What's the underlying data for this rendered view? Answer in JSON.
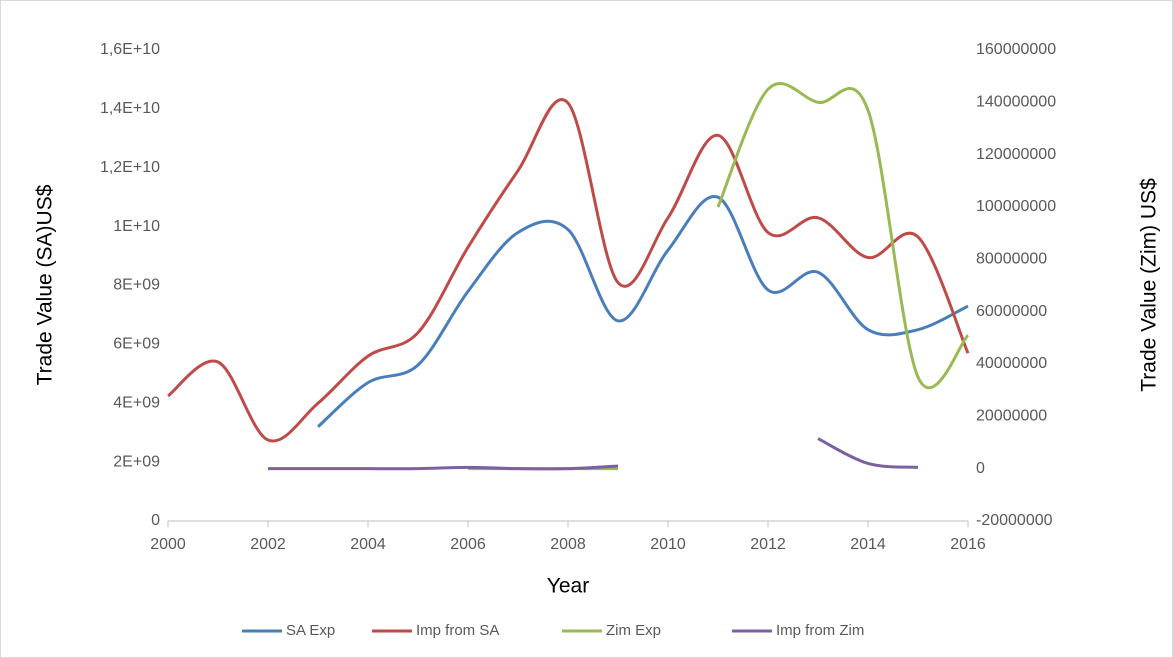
{
  "chart_data": {
    "type": "line",
    "x_label": "Year",
    "y_label": "Trade Value  (SA)US$",
    "y2_label": "Trade Value (Zim) US$",
    "x": [
      2000,
      2001,
      2002,
      2003,
      2004,
      2005,
      2006,
      2007,
      2008,
      2009,
      2010,
      2011,
      2012,
      2013,
      2014,
      2015,
      2016
    ],
    "xlim": [
      2000,
      2016
    ],
    "xticks": [
      2000,
      2002,
      2004,
      2006,
      2008,
      2010,
      2012,
      2014,
      2016
    ],
    "ylim": [
      0,
      16000000000
    ],
    "yticks": [
      0,
      {
        "value": 2000000000,
        "label": "2E+09"
      },
      {
        "value": 4000000000,
        "label": "4E+09"
      },
      {
        "value": 6000000000,
        "label": "6E+09"
      },
      {
        "value": 8000000000,
        "label": "8E+09"
      },
      {
        "value": 10000000000,
        "label": "1E+10"
      },
      {
        "value": 12000000000,
        "label": "1,2E+10"
      },
      {
        "value": 14000000000,
        "label": "1,4E+10"
      },
      {
        "value": 16000000000,
        "label": "1,6E+10"
      }
    ],
    "y2lim": [
      -20000000,
      160000000
    ],
    "y2ticks": [
      -20000000,
      0,
      20000000,
      40000000,
      60000000,
      80000000,
      100000000,
      120000000,
      140000000,
      160000000
    ],
    "grid": false,
    "legend": "bottom",
    "series": [
      {
        "name": "SA Exp",
        "color": "#4a7ebb",
        "axis": "y",
        "values": [
          null,
          null,
          null,
          3200000000,
          4700000000,
          5300000000,
          7800000000,
          9800000000,
          9900000000,
          6800000000,
          9200000000,
          11000000000,
          7850000000,
          8450000000,
          6500000000,
          6500000000,
          7300000000
        ]
      },
      {
        "name": "Imp from SA",
        "color": "#be4b48",
        "axis": "y",
        "values": [
          4250000000,
          5400000000,
          2750000000,
          4000000000,
          5600000000,
          6400000000,
          9300000000,
          11900000000,
          14200000000,
          8100000000,
          10300000000,
          13100000000,
          9800000000,
          10300000000,
          8950000000,
          9650000000,
          5700000000
        ]
      },
      {
        "name": "Zim Exp",
        "color": "#98b954",
        "axis": "y2",
        "values": [
          null,
          null,
          null,
          null,
          null,
          null,
          0,
          0,
          0,
          0,
          null,
          100000000,
          145000000,
          140000000,
          137000000,
          35000000,
          51000000
        ]
      },
      {
        "name": "Imp from Zim",
        "color": "#7d60a0",
        "axis": "y2",
        "values": [
          null,
          null,
          0,
          0,
          0,
          0,
          500000,
          0,
          0,
          1000000,
          null,
          null,
          null,
          11500000,
          2000000,
          500000,
          null
        ]
      }
    ]
  }
}
